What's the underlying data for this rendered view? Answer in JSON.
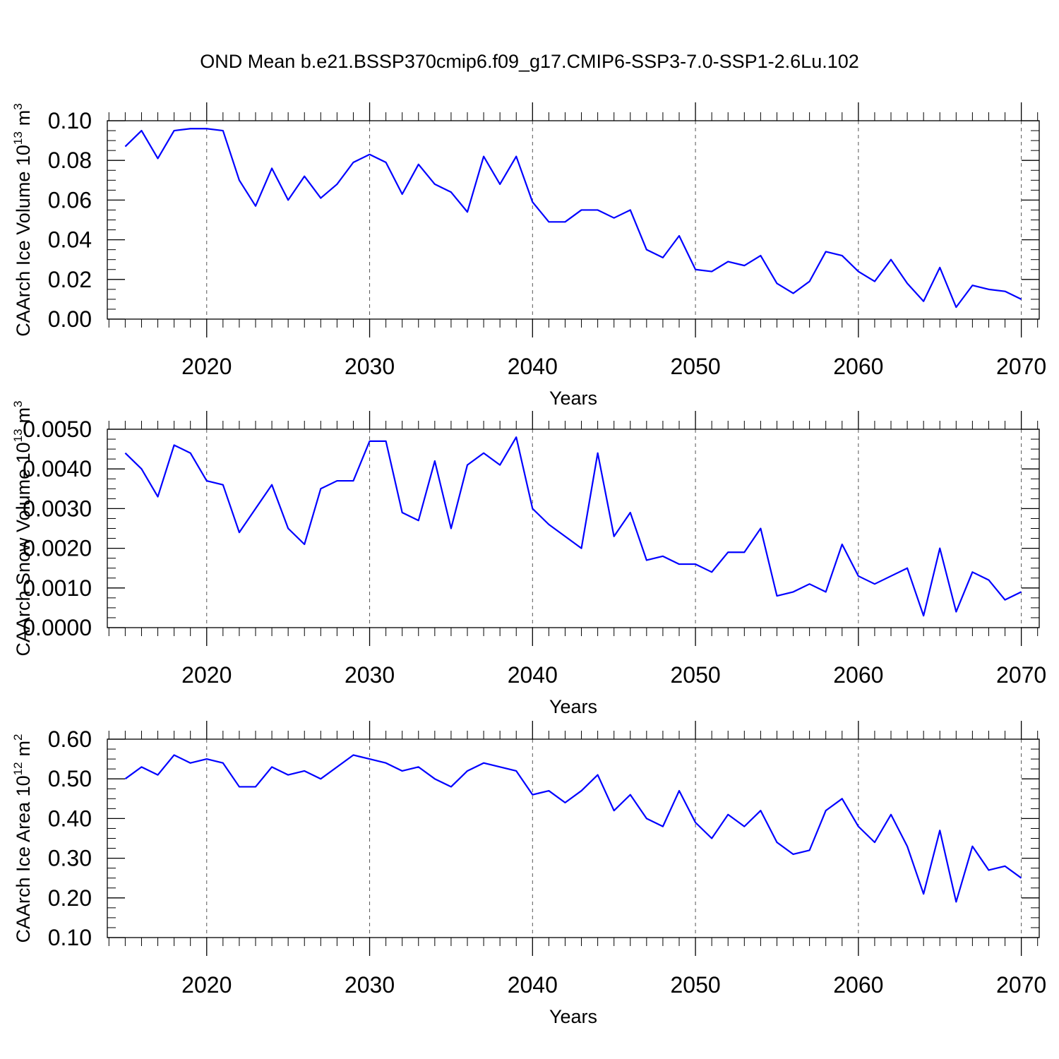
{
  "chart_data": [
    {
      "type": "line",
      "title": "OND Mean b.e21.BSSP370cmip6.f09_g17.CMIP6-SSP3-7.0-SSP1-2.6Lu.102",
      "xlabel": "Years",
      "ylabel": "CAArch Ice Volume 10",
      "ylabel_power": "13",
      "ylabel_unit": "m",
      "ylabel_unit_power": "3",
      "x": [
        2015,
        2016,
        2017,
        2018,
        2019,
        2020,
        2021,
        2022,
        2023,
        2024,
        2025,
        2026,
        2027,
        2028,
        2029,
        2030,
        2031,
        2032,
        2033,
        2034,
        2035,
        2036,
        2037,
        2038,
        2039,
        2040,
        2041,
        2042,
        2043,
        2044,
        2045,
        2046,
        2047,
        2048,
        2049,
        2050,
        2051,
        2052,
        2053,
        2054,
        2055,
        2056,
        2057,
        2058,
        2059,
        2060,
        2061,
        2062,
        2063,
        2064,
        2065,
        2066,
        2067,
        2068,
        2069,
        2070
      ],
      "series": [
        {
          "color": "#0000ff",
          "values": [
            0.087,
            0.095,
            0.081,
            0.095,
            0.096,
            0.096,
            0.095,
            0.07,
            0.057,
            0.076,
            0.06,
            0.072,
            0.061,
            0.068,
            0.079,
            0.083,
            0.079,
            0.063,
            0.078,
            0.068,
            0.064,
            0.054,
            0.082,
            0.068,
            0.082,
            0.059,
            0.049,
            0.049,
            0.055,
            0.055,
            0.051,
            0.055,
            0.035,
            0.031,
            0.042,
            0.025,
            0.024,
            0.029,
            0.027,
            0.032,
            0.018,
            0.013,
            0.019,
            0.034,
            0.032,
            0.024,
            0.019,
            0.03,
            0.018,
            0.009,
            0.026,
            0.006,
            0.017,
            0.015,
            0.014,
            0.01
          ]
        }
      ],
      "xlim": [
        2013.9,
        2071.1
      ],
      "xticks": [
        2020,
        2030,
        2040,
        2050,
        2060,
        2070
      ],
      "ylim": [
        0,
        0.1
      ],
      "yticks": [
        {
          "value": 0,
          "label": "0.00"
        },
        {
          "value": 0.02,
          "label": "0.02"
        },
        {
          "value": 0.04,
          "label": "0.04"
        },
        {
          "value": 0.06,
          "label": "0.06"
        },
        {
          "value": 0.08,
          "label": "0.08"
        },
        {
          "value": 0.1,
          "label": "0.10"
        }
      ],
      "grid": "x"
    },
    {
      "type": "line",
      "xlabel": "Years",
      "ylabel": "CAArch Snow Volume 10",
      "ylabel_power": "13",
      "ylabel_unit": "m",
      "ylabel_unit_power": "3",
      "x": [
        2015,
        2016,
        2017,
        2018,
        2019,
        2020,
        2021,
        2022,
        2023,
        2024,
        2025,
        2026,
        2027,
        2028,
        2029,
        2030,
        2031,
        2032,
        2033,
        2034,
        2035,
        2036,
        2037,
        2038,
        2039,
        2040,
        2041,
        2042,
        2043,
        2044,
        2045,
        2046,
        2047,
        2048,
        2049,
        2050,
        2051,
        2052,
        2053,
        2054,
        2055,
        2056,
        2057,
        2058,
        2059,
        2060,
        2061,
        2062,
        2063,
        2064,
        2065,
        2066,
        2067,
        2068,
        2069,
        2070
      ],
      "series": [
        {
          "color": "#0000ff",
          "values": [
            0.0044,
            0.004,
            0.0033,
            0.0046,
            0.0044,
            0.0037,
            0.0036,
            0.0024,
            0.003,
            0.0036,
            0.0025,
            0.0021,
            0.0035,
            0.0037,
            0.0037,
            0.0047,
            0.0047,
            0.0029,
            0.0027,
            0.0042,
            0.0025,
            0.0041,
            0.0044,
            0.0041,
            0.0048,
            0.003,
            0.0026,
            0.0023,
            0.002,
            0.0044,
            0.0023,
            0.0029,
            0.0017,
            0.0018,
            0.0016,
            0.0016,
            0.0014,
            0.0019,
            0.0019,
            0.0025,
            0.0008,
            0.0009,
            0.0011,
            0.0009,
            0.0021,
            0.0013,
            0.0011,
            0.0013,
            0.0015,
            0.0003,
            0.002,
            0.0004,
            0.0014,
            0.0012,
            0.0007,
            0.0009
          ]
        }
      ],
      "xlim": [
        2013.9,
        2071.1
      ],
      "xticks": [
        2020,
        2030,
        2040,
        2050,
        2060,
        2070
      ],
      "ylim": [
        0,
        0.005
      ],
      "yticks": [
        {
          "value": 0,
          "label": "0.0000"
        },
        {
          "value": 0.001,
          "label": "0.0010"
        },
        {
          "value": 0.002,
          "label": "0.0020"
        },
        {
          "value": 0.003,
          "label": "0.0030"
        },
        {
          "value": 0.004,
          "label": "0.0040"
        },
        {
          "value": 0.005,
          "label": "0.0050"
        }
      ],
      "grid": "x"
    },
    {
      "type": "line",
      "xlabel": "Years",
      "ylabel": "CAArch Ice Area 10",
      "ylabel_power": "12",
      "ylabel_unit": "m",
      "ylabel_unit_power": "2",
      "x": [
        2015,
        2016,
        2017,
        2018,
        2019,
        2020,
        2021,
        2022,
        2023,
        2024,
        2025,
        2026,
        2027,
        2028,
        2029,
        2030,
        2031,
        2032,
        2033,
        2034,
        2035,
        2036,
        2037,
        2038,
        2039,
        2040,
        2041,
        2042,
        2043,
        2044,
        2045,
        2046,
        2047,
        2048,
        2049,
        2050,
        2051,
        2052,
        2053,
        2054,
        2055,
        2056,
        2057,
        2058,
        2059,
        2060,
        2061,
        2062,
        2063,
        2064,
        2065,
        2066,
        2067,
        2068,
        2069,
        2070
      ],
      "series": [
        {
          "color": "#0000ff",
          "values": [
            0.5,
            0.53,
            0.51,
            0.56,
            0.54,
            0.55,
            0.54,
            0.48,
            0.48,
            0.53,
            0.51,
            0.52,
            0.5,
            0.53,
            0.56,
            0.55,
            0.54,
            0.52,
            0.53,
            0.5,
            0.48,
            0.52,
            0.54,
            0.53,
            0.52,
            0.46,
            0.47,
            0.44,
            0.47,
            0.51,
            0.42,
            0.46,
            0.4,
            0.38,
            0.47,
            0.39,
            0.35,
            0.41,
            0.38,
            0.42,
            0.34,
            0.31,
            0.32,
            0.42,
            0.45,
            0.38,
            0.34,
            0.41,
            0.33,
            0.21,
            0.37,
            0.19,
            0.33,
            0.27,
            0.28,
            0.25
          ]
        }
      ],
      "xlim": [
        2013.9,
        2071.1
      ],
      "xticks": [
        2020,
        2030,
        2040,
        2050,
        2060,
        2070
      ],
      "ylim": [
        0.1,
        0.6
      ],
      "yticks": [
        {
          "value": 0.1,
          "label": "0.10"
        },
        {
          "value": 0.2,
          "label": "0.20"
        },
        {
          "value": 0.3,
          "label": "0.30"
        },
        {
          "value": 0.4,
          "label": "0.40"
        },
        {
          "value": 0.5,
          "label": "0.50"
        },
        {
          "value": 0.6,
          "label": "0.60"
        }
      ],
      "grid": "x"
    }
  ]
}
